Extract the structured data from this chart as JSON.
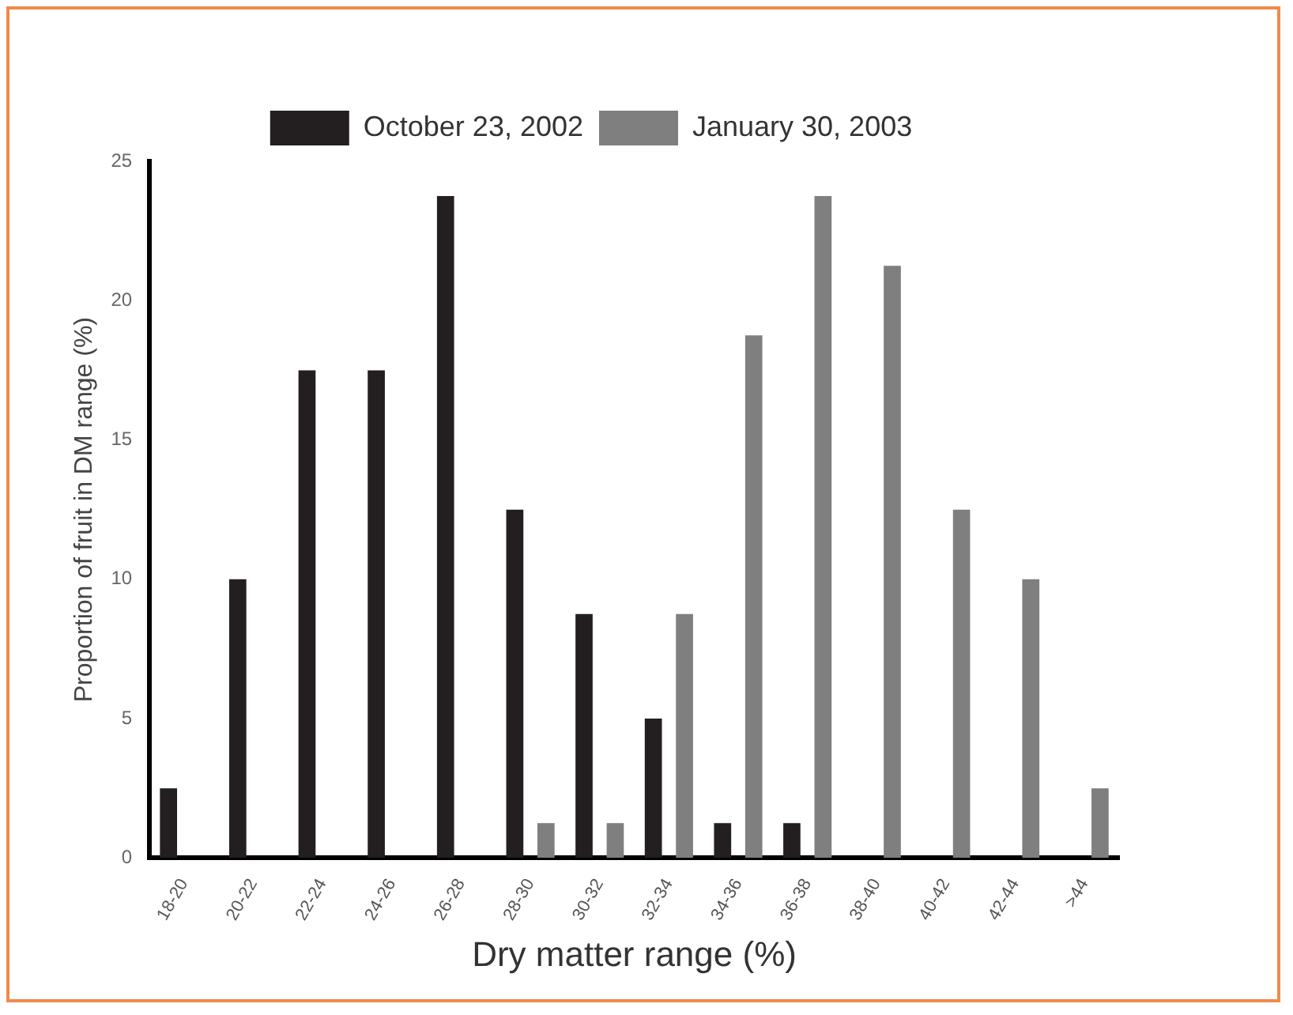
{
  "chart_data": {
    "type": "bar",
    "xlabel": "Dry matter range (%)",
    "ylabel": "Proportion of fruit in DM range (%)",
    "categories": [
      "18-20",
      "20-22",
      "22-24",
      "24-26",
      "26-28",
      "28-30",
      "30-32",
      "32-34",
      "34-36",
      "36-38",
      "38-40",
      "40-42",
      "42-44",
      ">44"
    ],
    "series": [
      {
        "name": "October 23, 2002",
        "color": "#231f20",
        "values": [
          2.5,
          10,
          17.5,
          17.5,
          23.75,
          12.5,
          8.75,
          5,
          1.25,
          1.25,
          0,
          0,
          0,
          0
        ]
      },
      {
        "name": "January 30, 2003",
        "color": "#7f7f7f",
        "values": [
          0,
          0,
          0,
          0,
          0,
          1.25,
          1.25,
          8.75,
          18.75,
          23.75,
          21.25,
          12.5,
          10,
          2.5
        ]
      }
    ],
    "ylim": [
      0,
      25
    ],
    "yticks": [
      0,
      5,
      10,
      15,
      20,
      25
    ],
    "grid": false,
    "legend": "top"
  }
}
